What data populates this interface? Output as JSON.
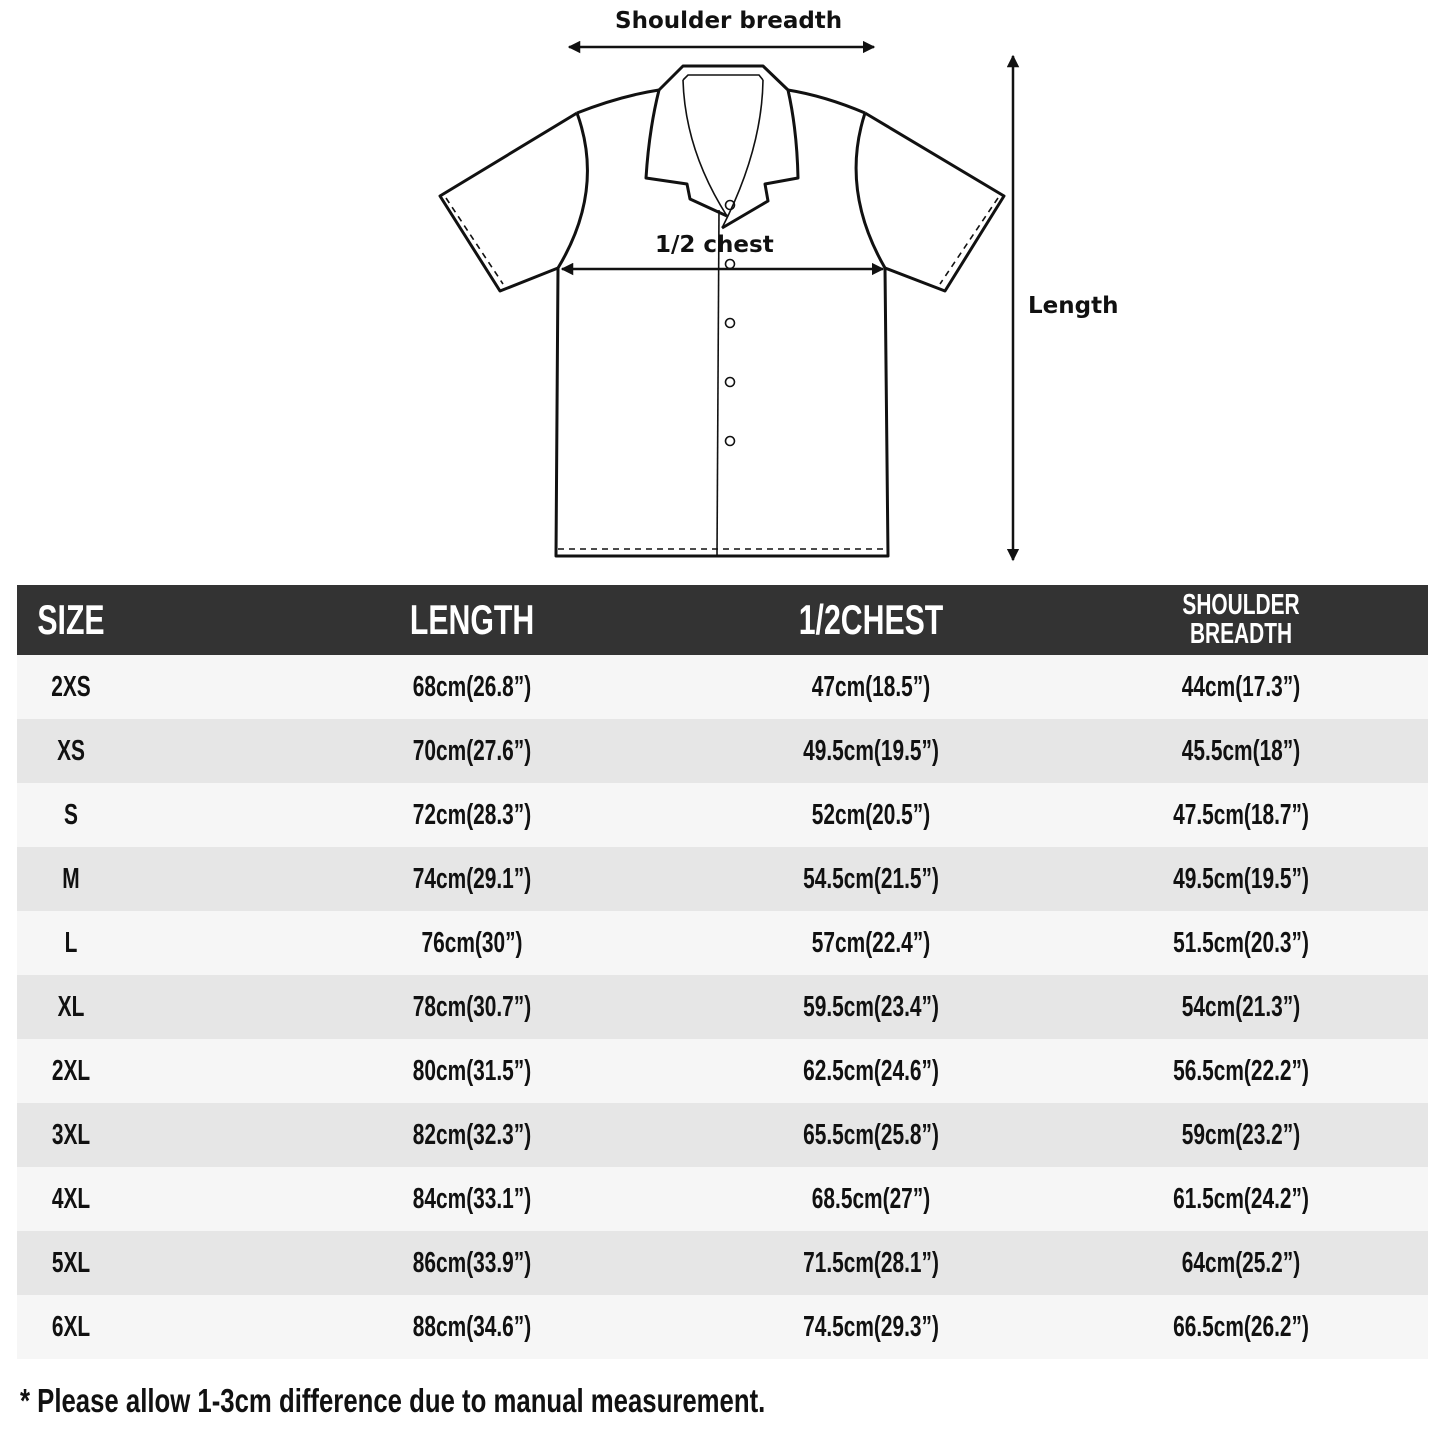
{
  "diagram": {
    "shoulder_label": "Shoulder breadth",
    "chest_label": "1/2 chest",
    "length_label": "Length"
  },
  "table": {
    "headers": [
      "SIZE",
      "LENGTH",
      "1/2CHEST",
      "SHOULDER BREADTH"
    ],
    "header_colors": {
      "background": "#333333",
      "text": "#ffffff",
      "row_light": "#f6f6f6",
      "row_dark": "#e6e6e6"
    },
    "rows": [
      [
        "2XS",
        "68cm(26.8”)",
        "47cm(18.5”)",
        "44cm(17.3”)"
      ],
      [
        "XS",
        "70cm(27.6”)",
        "49.5cm(19.5”)",
        "45.5cm(18”)"
      ],
      [
        "S",
        "72cm(28.3”)",
        "52cm(20.5”)",
        "47.5cm(18.7”)"
      ],
      [
        "M",
        "74cm(29.1”)",
        "54.5cm(21.5”)",
        "49.5cm(19.5”)"
      ],
      [
        "L",
        "76cm(30”)",
        "57cm(22.4”)",
        "51.5cm(20.3”)"
      ],
      [
        "XL",
        "78cm(30.7”)",
        "59.5cm(23.4”)",
        "54cm(21.3”)"
      ],
      [
        "2XL",
        "80cm(31.5”)",
        "62.5cm(24.6”)",
        "56.5cm(22.2”)"
      ],
      [
        "3XL",
        "82cm(32.3”)",
        "65.5cm(25.8”)",
        "59cm(23.2”)"
      ],
      [
        "4XL",
        "84cm(33.1”)",
        "68.5cm(27”)",
        "61.5cm(24.2”)"
      ],
      [
        "5XL",
        "86cm(33.9”)",
        "71.5cm(28.1”)",
        "64cm(25.2”)"
      ],
      [
        "6XL",
        "88cm(34.6”)",
        "74.5cm(29.3”)",
        "66.5cm(26.2”)"
      ]
    ]
  },
  "footnote": "* Please allow 1-3cm difference due to manual measurement."
}
